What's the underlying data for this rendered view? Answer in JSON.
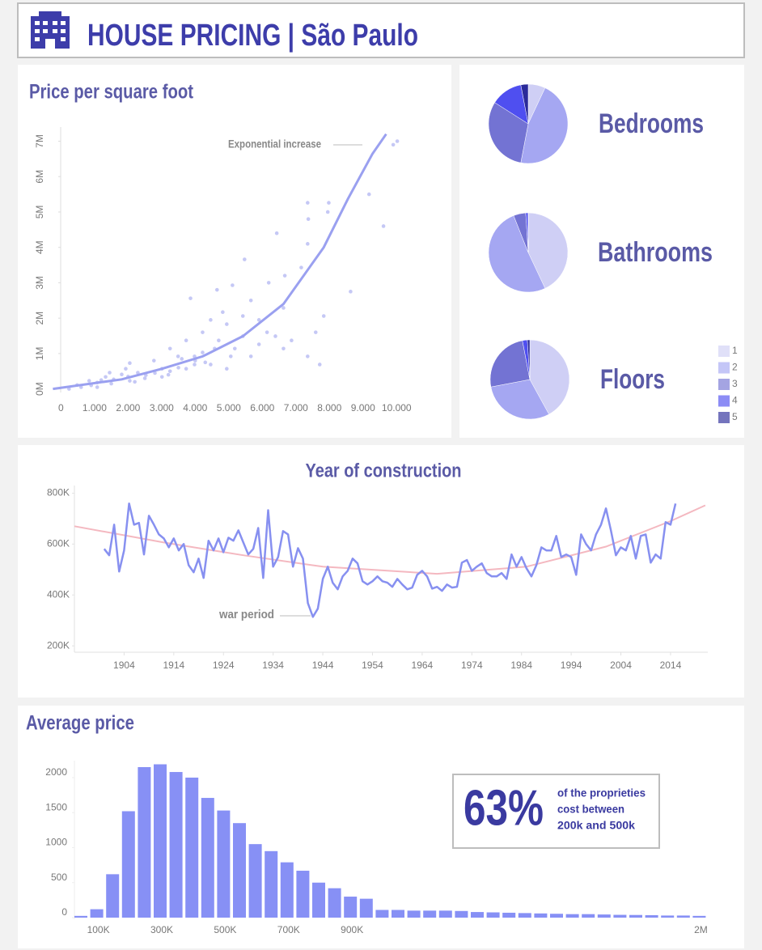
{
  "header": {
    "title": "HOUSE PRICING | São Paulo"
  },
  "kpi": {
    "value": "63%",
    "lines": [
      "of the proprieties",
      "cost between",
      "200k and 500k"
    ]
  },
  "chart_data": [
    {
      "type": "scatter",
      "title": "Price per square foot",
      "color": "#c5c8f5",
      "x": [
        9900,
        10020,
        9180,
        9610,
        8630,
        7980,
        7950,
        7350,
        7370,
        6430,
        7350,
        5470,
        7160,
        6670,
        6190,
        5110,
        4650,
        3860,
        5660,
        6630,
        5420,
        4940,
        4460,
        5900,
        7830,
        7590,
        6870,
        7350,
        7710,
        6390,
        4220,
        3730,
        3250,
        4700,
        5180,
        5660,
        6140,
        4820,
        4220,
        3490,
        2770,
        2050,
        3980,
        3010,
        2290,
        1810,
        1330,
        840,
        480,
        1080,
        1570,
        2530,
        3250,
        3730,
        4460,
        600,
        240,
        1080,
        2050,
        3010,
        5060,
        4580,
        5900,
        6630,
        5420,
        3980,
        4940,
        1930,
        1450,
        1500,
        2000,
        2500,
        2800,
        3500,
        4000,
        900,
        1200,
        2200,
        3200,
        4300,
        3600
      ],
      "values": [
        6900000,
        7000000,
        5500000,
        4600000,
        2750000,
        5260000,
        5000000,
        5260000,
        4800000,
        4400000,
        4100000,
        3660000,
        3430000,
        3200000,
        3000000,
        2930000,
        2800000,
        2560000,
        2500000,
        2290000,
        2060000,
        1830000,
        1950000,
        1950000,
        2060000,
        1600000,
        1370000,
        920000,
        690000,
        1490000,
        1600000,
        1370000,
        1140000,
        1370000,
        1140000,
        920000,
        1600000,
        2170000,
        1030000,
        920000,
        800000,
        730000,
        690000,
        570000,
        460000,
        410000,
        340000,
        230000,
        110000,
        180000,
        270000,
        390000,
        500000,
        570000,
        690000,
        50000,
        0,
        50000,
        230000,
        340000,
        920000,
        1140000,
        1260000,
        1140000,
        1490000,
        920000,
        570000,
        570000,
        460000,
        150000,
        350000,
        300000,
        450000,
        600000,
        800000,
        100000,
        250000,
        200000,
        400000,
        750000,
        850000
      ],
      "trend": {
        "color": "#9aa0f0",
        "x": [
          -240,
          1810,
          3010,
          4220,
          5420,
          6630,
          7830,
          8550,
          9280,
          9690
        ],
        "values": [
          0,
          270000,
          570000,
          920000,
          1490000,
          2400000,
          4000000,
          5370000,
          6640000,
          7200000
        ]
      },
      "annotation": "Exponential increase",
      "xlim": [
        -250,
        10500
      ],
      "xticks": [
        0,
        {
          "value": 1000,
          "label": "1.000"
        },
        {
          "value": 2000,
          "label": "2.000"
        },
        {
          "value": 3000,
          "label": "3.000"
        },
        {
          "value": 4000,
          "label": "4.000"
        },
        {
          "value": 5000,
          "label": "5.000"
        },
        {
          "value": 6000,
          "label": "6.000"
        },
        {
          "value": 7000,
          "label": "7.000"
        },
        {
          "value": 8000,
          "label": "8.000"
        },
        {
          "value": 9000,
          "label": "9.000"
        },
        {
          "value": 10000,
          "label": "10.000"
        }
      ],
      "ylim": [
        -100000,
        7400000
      ],
      "yticks": [
        {
          "value": 0,
          "label": "0M"
        },
        {
          "value": 1000000,
          "label": "1M"
        },
        {
          "value": 2000000,
          "label": "2M"
        },
        {
          "value": 3000000,
          "label": "3M"
        },
        {
          "value": 4000000,
          "label": "4M"
        },
        {
          "value": 5000000,
          "label": "5M"
        },
        {
          "value": 6000000,
          "label": "6M"
        },
        {
          "value": 7000000,
          "label": "7M"
        }
      ]
    },
    {
      "type": "pie",
      "categories": [
        "1",
        "2",
        "3",
        "4",
        "5"
      ],
      "colors": [
        "#cfcff5",
        "#a5a7f2",
        "#7373d3",
        "#4f4ff0",
        "#2a2a9a"
      ],
      "series": [
        {
          "name": "Bedrooms",
          "values": [
            7,
            46,
            31,
            13,
            3
          ]
        },
        {
          "name": "Bathrooms",
          "values": [
            43,
            51,
            5,
            1,
            0
          ]
        },
        {
          "name": "Floors",
          "values": [
            42,
            30,
            25,
            2,
            1
          ]
        }
      ]
    },
    {
      "type": "line",
      "title": "Year of construction",
      "color": "#8790f0",
      "x": [
        1900,
        1901,
        1902,
        1903,
        1904,
        1905,
        1906,
        1907,
        1908,
        1909,
        1910,
        1911,
        1912,
        1913,
        1914,
        1915,
        1916,
        1917,
        1918,
        1919,
        1920,
        1921,
        1922,
        1923,
        1924,
        1925,
        1926,
        1927,
        1928,
        1929,
        1930,
        1931,
        1932,
        1933,
        1934,
        1935,
        1936,
        1937,
        1938,
        1939,
        1940,
        1941,
        1942,
        1943,
        1944,
        1945,
        1946,
        1947,
        1948,
        1949,
        1950,
        1951,
        1952,
        1953,
        1954,
        1955,
        1956,
        1957,
        1958,
        1959,
        1960,
        1961,
        1962,
        1963,
        1964,
        1965,
        1966,
        1967,
        1968,
        1969,
        1970,
        1971,
        1972,
        1973,
        1974,
        1975,
        1976,
        1977,
        1978,
        1979,
        1980,
        1981,
        1982,
        1983,
        1984,
        1985,
        1986,
        1987,
        1988,
        1989,
        1990,
        1991,
        1992,
        1993,
        1994,
        1995,
        1996,
        1997,
        1998,
        1999,
        2000,
        2001,
        2002,
        2003,
        2004,
        2005,
        2006,
        2007,
        2008,
        2009,
        2010,
        2011,
        2012,
        2013,
        2014,
        2015
      ],
      "values": [
        581000,
        556000,
        676000,
        492000,
        575000,
        759000,
        676000,
        683000,
        559000,
        711000,
        676000,
        638000,
        622000,
        587000,
        622000,
        575000,
        600000,
        517000,
        489000,
        543000,
        467000,
        613000,
        575000,
        622000,
        568000,
        625000,
        613000,
        654000,
        606000,
        559000,
        581000,
        663000,
        467000,
        733000,
        511000,
        549000,
        651000,
        638000,
        511000,
        584000,
        543000,
        368000,
        314000,
        346000,
        463000,
        511000,
        448000,
        422000,
        473000,
        495000,
        543000,
        524000,
        454000,
        441000,
        454000,
        473000,
        454000,
        448000,
        432000,
        463000,
        441000,
        422000,
        429000,
        479000,
        495000,
        473000,
        425000,
        432000,
        416000,
        441000,
        429000,
        432000,
        527000,
        537000,
        495000,
        511000,
        524000,
        486000,
        473000,
        473000,
        486000,
        463000,
        559000,
        511000,
        549000,
        505000,
        473000,
        517000,
        587000,
        575000,
        575000,
        632000,
        549000,
        559000,
        549000,
        479000,
        638000,
        600000,
        575000,
        638000,
        676000,
        740000,
        654000,
        556000,
        587000,
        575000,
        632000,
        543000,
        632000,
        638000,
        527000,
        559000,
        543000,
        686000,
        676000,
        759000
      ],
      "trend": {
        "color": "#f4b8c0",
        "x": [
          1894,
          1912,
          1928,
          1944,
          1967,
          1985,
          2001,
          2014,
          2021
        ],
        "values": [
          670000,
          606000,
          556000,
          511000,
          483000,
          511000,
          590000,
          690000,
          752000
        ]
      },
      "annotation": "war period",
      "xlim": [
        1894,
        2021.5
      ],
      "xticks": [
        1904,
        1914,
        1924,
        1934,
        1944,
        1954,
        1964,
        1974,
        1984,
        1994,
        2004,
        2014
      ],
      "ylim": [
        175000,
        830000
      ],
      "yticks": [
        {
          "value": 200000,
          "label": "200K"
        },
        {
          "value": 400000,
          "label": "400K"
        },
        {
          "value": 600000,
          "label": "600K"
        },
        {
          "value": 800000,
          "label": "800K"
        }
      ]
    },
    {
      "type": "bar",
      "title": "Average price",
      "color": "#8790f5",
      "categories": [
        null,
        "100K",
        null,
        null,
        null,
        "300K",
        null,
        null,
        null,
        "500K",
        null,
        null,
        null,
        "700K",
        null,
        null,
        null,
        "900K",
        null,
        null,
        null,
        null,
        null,
        null,
        null,
        null,
        null,
        null,
        null,
        null,
        null,
        null,
        null,
        null,
        null,
        null,
        null,
        null,
        null,
        "2M"
      ],
      "values": [
        25,
        120,
        620,
        1520,
        2150,
        2190,
        2080,
        2000,
        1710,
        1530,
        1350,
        1050,
        950,
        790,
        670,
        500,
        420,
        300,
        270,
        110,
        110,
        100,
        100,
        100,
        95,
        80,
        75,
        70,
        65,
        60,
        55,
        50,
        50,
        45,
        40,
        38,
        35,
        30,
        30,
        25
      ],
      "ylim": [
        0,
        2300
      ],
      "yticks": [
        0,
        500,
        1000,
        1500,
        2000
      ]
    }
  ]
}
